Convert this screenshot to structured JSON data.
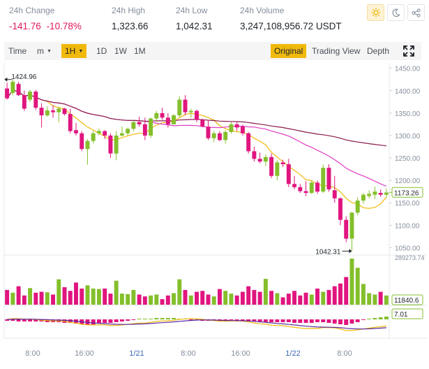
{
  "stats": [
    {
      "label": "24h Change",
      "value": "-141.76",
      "value2": "-10.78%",
      "negative": true
    },
    {
      "label": "24h High",
      "value": "1,323.66"
    },
    {
      "label": "24h Low",
      "value": "1,042.31"
    },
    {
      "label": "24h Volume",
      "value": "3,247,108,956.72 USDT"
    }
  ],
  "icons": {
    "light": "sun-icon",
    "dark": "moon-icon",
    "share": "share-icon"
  },
  "toolbar": {
    "time": "Time",
    "minute": "m",
    "hour": "1H",
    "d1": "1D",
    "w1": "1W",
    "m1": "1M",
    "original": "Original",
    "tradingview": "Trading View",
    "depth": "Depth"
  },
  "colors": {
    "up": "#84bf2b",
    "down": "#e0157f",
    "accent": "#f0b90b",
    "ma_fast": "#f0b90b",
    "ma_slow": "#e13bc4",
    "ma_long": "#8b1a4b",
    "dif": "#f0b90b",
    "dea": "#5a2aa0",
    "axis_text": "#848e9c"
  },
  "chart_data": {
    "type": "candlestick",
    "price_axis": {
      "ticks": [
        "1450.00",
        "1400.00",
        "1350.00",
        "1300.00",
        "1250.00",
        "1200.00",
        "1150.00",
        "1100.00",
        "1050.00"
      ],
      "min": 1035,
      "max": 1462
    },
    "last_price": "1173.26",
    "high_marker": "1424.96",
    "low_marker": "1042.31",
    "volume_max_label": "289273.74",
    "volume_last_label": "11840.6",
    "macd_label": "7.01",
    "time_labels": [
      "8:00",
      "16:00",
      "1/21",
      "8:00",
      "16:00",
      "1/22",
      "8:00"
    ],
    "candles": [
      [
        1405,
        1418,
        1380,
        1383
      ],
      [
        1395,
        1425,
        1390,
        1420
      ],
      [
        1415,
        1420,
        1388,
        1390
      ],
      [
        1390,
        1400,
        1355,
        1360
      ],
      [
        1380,
        1402,
        1375,
        1398
      ],
      [
        1398,
        1402,
        1357,
        1362
      ],
      [
        1362,
        1372,
        1318,
        1345
      ],
      [
        1345,
        1365,
        1342,
        1356
      ],
      [
        1356,
        1368,
        1340,
        1352
      ],
      [
        1352,
        1365,
        1330,
        1360
      ],
      [
        1360,
        1362,
        1345,
        1348
      ],
      [
        1348,
        1360,
        1305,
        1310
      ],
      [
        1312,
        1328,
        1300,
        1305
      ],
      [
        1305,
        1310,
        1265,
        1270
      ],
      [
        1270,
        1292,
        1235,
        1288
      ],
      [
        1288,
        1310,
        1282,
        1305
      ],
      [
        1305,
        1315,
        1300,
        1310
      ],
      [
        1310,
        1312,
        1292,
        1300
      ],
      [
        1300,
        1305,
        1250,
        1260
      ],
      [
        1260,
        1310,
        1245,
        1300
      ],
      [
        1300,
        1320,
        1298,
        1305
      ],
      [
        1305,
        1318,
        1300,
        1315
      ],
      [
        1315,
        1332,
        1310,
        1330
      ],
      [
        1330,
        1342,
        1320,
        1325
      ],
      [
        1325,
        1340,
        1290,
        1300
      ],
      [
        1300,
        1340,
        1295,
        1338
      ],
      [
        1338,
        1355,
        1330,
        1350
      ],
      [
        1350,
        1362,
        1335,
        1340
      ],
      [
        1340,
        1350,
        1318,
        1325
      ],
      [
        1325,
        1348,
        1325,
        1345
      ],
      [
        1345,
        1388,
        1340,
        1380
      ],
      [
        1380,
        1390,
        1345,
        1352
      ],
      [
        1352,
        1360,
        1340,
        1355
      ],
      [
        1355,
        1358,
        1330,
        1335
      ],
      [
        1335,
        1338,
        1318,
        1320
      ],
      [
        1320,
        1335,
        1290,
        1294
      ],
      [
        1294,
        1310,
        1285,
        1305
      ],
      [
        1305,
        1310,
        1287,
        1290
      ],
      [
        1290,
        1312,
        1282,
        1308
      ],
      [
        1308,
        1330,
        1305,
        1325
      ],
      [
        1325,
        1330,
        1310,
        1318
      ],
      [
        1320,
        1324,
        1300,
        1305
      ],
      [
        1305,
        1308,
        1260,
        1265
      ],
      [
        1265,
        1275,
        1242,
        1248
      ],
      [
        1248,
        1262,
        1238,
        1242
      ],
      [
        1242,
        1258,
        1232,
        1252
      ],
      [
        1252,
        1260,
        1205,
        1210
      ],
      [
        1210,
        1245,
        1200,
        1240
      ],
      [
        1240,
        1246,
        1230,
        1236
      ],
      [
        1236,
        1248,
        1185,
        1192
      ],
      [
        1192,
        1210,
        1180,
        1185
      ],
      [
        1185,
        1192,
        1172,
        1176
      ],
      [
        1176,
        1198,
        1165,
        1172
      ],
      [
        1172,
        1200,
        1170,
        1195
      ],
      [
        1195,
        1200,
        1170,
        1175
      ],
      [
        1175,
        1235,
        1172,
        1228
      ],
      [
        1228,
        1236,
        1175,
        1180
      ],
      [
        1178,
        1210,
        1150,
        1160
      ],
      [
        1160,
        1162,
        1100,
        1112
      ],
      [
        1112,
        1120,
        1062,
        1070
      ],
      [
        1070,
        1130,
        1042,
        1128
      ],
      [
        1128,
        1162,
        1122,
        1155
      ],
      [
        1155,
        1172,
        1148,
        1168
      ],
      [
        1165,
        1178,
        1160,
        1170
      ],
      [
        1168,
        1186,
        1158,
        1175
      ],
      [
        1172,
        1180,
        1163,
        1168
      ],
      [
        1168,
        1182,
        1162,
        1173
      ]
    ],
    "volume": [
      32,
      26,
      40,
      20,
      36,
      26,
      28,
      27,
      22,
      55,
      38,
      30,
      48,
      35,
      42,
      35,
      34,
      35,
      24,
      52,
      24,
      23,
      32,
      22,
      18,
      20,
      22,
      12,
      20,
      25,
      55,
      32,
      20,
      28,
      30,
      22,
      18,
      34,
      30,
      24,
      20,
      28,
      40,
      32,
      28,
      56,
      30,
      25,
      16,
      24,
      30,
      20,
      26,
      22,
      35,
      28,
      32,
      40,
      46,
      60,
      100,
      80,
      45,
      25,
      22,
      28,
      20
    ],
    "macd_bars": [
      -2,
      -2,
      -3,
      -3,
      -3,
      -3,
      -3,
      -4,
      -4,
      -4,
      -5,
      -5,
      -6,
      -7,
      -8,
      -8,
      -6,
      -5,
      -5,
      -4,
      -3,
      -2,
      -1,
      1,
      1,
      1,
      2,
      2,
      2,
      2,
      1,
      1,
      -1,
      -1,
      -2,
      -2,
      -2,
      -2,
      -1,
      -1,
      -2,
      -3,
      -3,
      -3,
      -4,
      -4,
      -4,
      -4,
      -4,
      -4,
      -5,
      -5,
      -5,
      -5,
      -4,
      -4,
      -5,
      -6,
      -7,
      -8,
      -6,
      -4,
      -1,
      1,
      2,
      3,
      4
    ]
  }
}
